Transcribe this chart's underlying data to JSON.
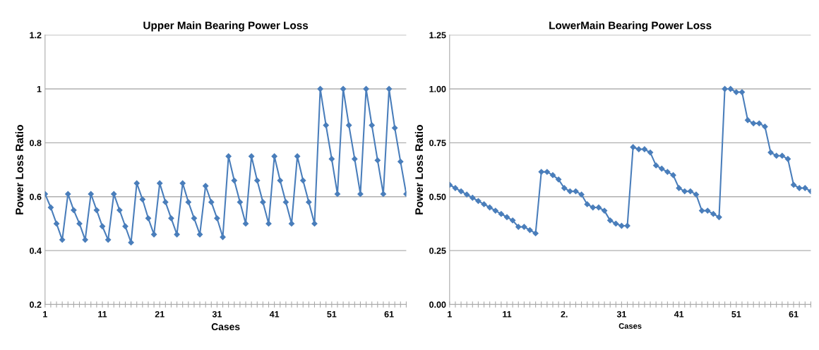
{
  "chart_data": [
    {
      "type": "line",
      "title": "Upper Main Bearing Power Loss",
      "xlabel": "Cases",
      "ylabel": "Power Loss Ratio",
      "categories": [
        "1",
        null,
        null,
        null,
        null,
        null,
        null,
        null,
        null,
        null,
        "11",
        null,
        null,
        null,
        null,
        null,
        null,
        null,
        null,
        null,
        "21",
        null,
        null,
        null,
        null,
        null,
        null,
        null,
        null,
        null,
        "31",
        null,
        null,
        null,
        null,
        null,
        null,
        null,
        null,
        null,
        "41",
        null,
        null,
        null,
        null,
        null,
        null,
        null,
        null,
        null,
        "51",
        null,
        null,
        null,
        null,
        null,
        null,
        null,
        null,
        null,
        "61",
        null,
        null,
        null
      ],
      "series": [
        {
          "color": "#4a7ebb",
          "values": [
            0.61,
            0.56,
            0.5,
            0.44,
            0.61,
            0.55,
            0.5,
            0.44,
            0.61,
            0.55,
            0.49,
            0.44,
            0.61,
            0.55,
            0.49,
            0.43,
            0.65,
            0.59,
            0.52,
            0.46,
            0.65,
            0.58,
            0.52,
            0.46,
            0.65,
            0.58,
            0.52,
            0.46,
            0.64,
            0.58,
            0.52,
            0.45,
            0.75,
            0.66,
            0.58,
            0.5,
            0.75,
            0.66,
            0.58,
            0.5,
            0.75,
            0.66,
            0.58,
            0.5,
            0.75,
            0.66,
            0.58,
            0.5,
            1.0,
            0.865,
            0.74,
            0.61,
            1.0,
            0.865,
            0.74,
            0.61,
            1.0,
            0.865,
            0.735,
            0.61,
            1.0,
            0.855,
            0.73,
            0.61
          ]
        }
      ],
      "ylim": [
        0.2,
        1.2
      ],
      "yticks": [
        0.2,
        0.4,
        0.6,
        0.8,
        1,
        1.2
      ],
      "grid": "y",
      "marker": "diamond",
      "line_style": "solid"
    },
    {
      "type": "line",
      "title": "LowerMain Bearing Power Loss",
      "xlabel": "Cases",
      "ylabel": "Power Loss Ratio",
      "categories": [
        "1",
        null,
        null,
        null,
        null,
        null,
        null,
        null,
        null,
        null,
        "11",
        null,
        null,
        null,
        null,
        null,
        null,
        null,
        null,
        null,
        "2.",
        null,
        null,
        null,
        null,
        null,
        null,
        null,
        null,
        null,
        "31",
        null,
        null,
        null,
        null,
        null,
        null,
        null,
        null,
        null,
        "41",
        null,
        null,
        null,
        null,
        null,
        null,
        null,
        null,
        null,
        "51",
        null,
        null,
        null,
        null,
        null,
        null,
        null,
        null,
        null,
        "61",
        null,
        null,
        null
      ],
      "series": [
        {
          "color": "#4a7ebb",
          "values": [
            0.555,
            0.54,
            0.525,
            0.51,
            0.495,
            0.48,
            0.465,
            0.45,
            0.435,
            0.42,
            0.405,
            0.39,
            0.36,
            0.36,
            0.345,
            0.33,
            0.615,
            0.615,
            0.6,
            0.58,
            0.54,
            0.525,
            0.525,
            0.51,
            0.465,
            0.45,
            0.45,
            0.435,
            0.39,
            0.375,
            0.365,
            0.365,
            0.73,
            0.72,
            0.72,
            0.705,
            0.645,
            0.63,
            0.615,
            0.6,
            0.54,
            0.525,
            0.525,
            0.51,
            0.435,
            0.435,
            0.42,
            0.405,
            1.0,
            1.0,
            0.985,
            0.985,
            0.855,
            0.84,
            0.84,
            0.825,
            0.705,
            0.69,
            0.69,
            0.675,
            0.555,
            0.54,
            0.54,
            0.525
          ]
        }
      ],
      "ylim": [
        0,
        1.25
      ],
      "yticks": [
        {
          "value": 0,
          "label": "0.00"
        },
        {
          "value": 0.25,
          "label": "0.25"
        },
        {
          "value": 0.5,
          "label": "0.50"
        },
        {
          "value": 0.75,
          "label": "0.75"
        },
        {
          "value": 1,
          "label": "1.00"
        },
        {
          "value": 1.25,
          "label": "1.25"
        }
      ],
      "grid": "y",
      "marker": "diamond",
      "line_style": "solid"
    }
  ]
}
